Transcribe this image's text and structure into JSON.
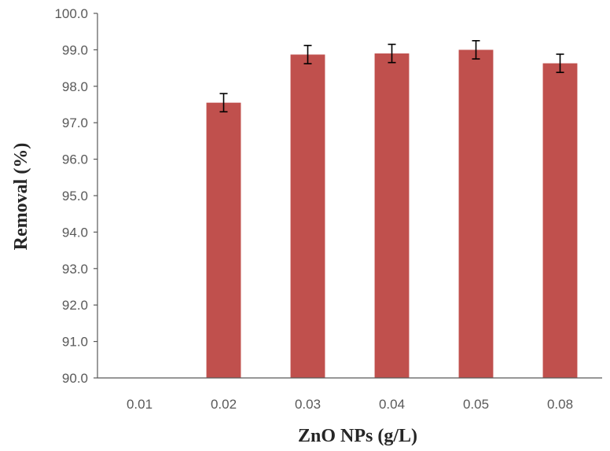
{
  "chart_data": {
    "type": "bar",
    "title": "",
    "xlabel": "ZnO NPs (g/L)",
    "ylabel": "Removal (%)",
    "categories": [
      "0.01",
      "0.02",
      "0.03",
      "0.04",
      "0.05",
      "0.08"
    ],
    "values": [
      null,
      97.55,
      98.87,
      98.9,
      99.0,
      98.63
    ],
    "errors": [
      null,
      0.25,
      0.25,
      0.25,
      0.25,
      0.25
    ],
    "ylim": [
      90.0,
      100.0
    ],
    "yticks": [
      "90.0",
      "91.0",
      "92.0",
      "93.0",
      "94.0",
      "95.0",
      "96.0",
      "97.0",
      "98.0",
      "99.0",
      "100.0"
    ],
    "grid": false,
    "legend": "none",
    "bar_color": "#C0504D",
    "error_bar_color": "#000000"
  }
}
